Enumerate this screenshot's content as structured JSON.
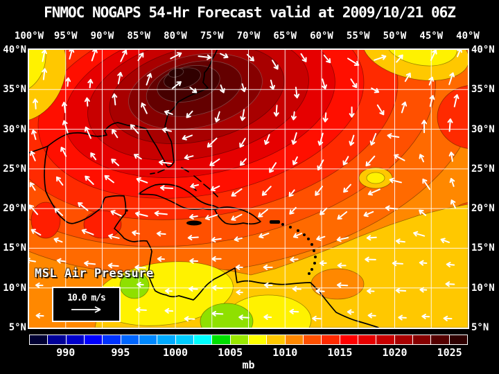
{
  "title": "FNMOC NOGAPS 54-Hr Forecast valid at 2009/10/21 06Z",
  "axes": {
    "lon_labels": [
      "100°W",
      "95°W",
      "90°W",
      "85°W",
      "80°W",
      "75°W",
      "70°W",
      "65°W",
      "60°W",
      "55°W",
      "50°W",
      "45°W",
      "40°W"
    ],
    "lat_labels": [
      "40°N",
      "35°N",
      "30°N",
      "25°N",
      "20°N",
      "15°N",
      "10°N",
      "5°N"
    ]
  },
  "map_overlay": {
    "field_label": "MSL Air Pressure",
    "wind_scale_label": "10.0 m/s"
  },
  "colorbar": {
    "tick_labels": [
      "990",
      "995",
      "1000",
      "1005",
      "1010",
      "1015",
      "1020",
      "1025"
    ],
    "unit_label": "mb",
    "segment_colors": [
      "#000033",
      "#000099",
      "#0000CC",
      "#0000FF",
      "#0033FF",
      "#0066FF",
      "#0088FF",
      "#00AAFF",
      "#00CCFF",
      "#00FFFF",
      "#00E000",
      "#99E800",
      "#FFFF00",
      "#FFC800",
      "#FF8800",
      "#FF5000",
      "#FF2A00",
      "#FF0000",
      "#E60000",
      "#C80000",
      "#A80000",
      "#860000",
      "#550000",
      "#2E0000"
    ]
  },
  "chart_data": {
    "type": "filled_contour_map",
    "title": "FNMOC NOGAPS 54-Hr Forecast valid at 2009/10/21 06Z",
    "source": "FNMOC",
    "model": "NOGAPS",
    "forecast_hour": 54,
    "valid_time": "2009/10/21 06Z",
    "variable": "MSL Air Pressure",
    "unit": "mb",
    "lon_range": [
      "100°W",
      "40°W"
    ],
    "lat_range": [
      "5°N",
      "40°N"
    ],
    "grid_interval_deg": 5,
    "colorbar_ticks_mb": [
      990,
      995,
      1000,
      1005,
      1010,
      1015,
      1020,
      1025
    ],
    "wind_vector_reference": "10.0 m/s",
    "legend_position": "bottom-left inside map",
    "features": [
      {
        "feature": "strong surface high (dark maroon, >1025 mb)",
        "location": "southeastern US / western Atlantic, ~30-37N 90-70W"
      },
      {
        "feature": "red ring 1015-1020 mb around the high",
        "location": "Gulf of Mexico through mid-Atlantic"
      },
      {
        "feature": "orange 1010-1012 mb field",
        "location": "Caribbean and tropical Atlantic"
      },
      {
        "feature": "gold/yellow ~1008-1010 mb band",
        "location": "southern map, 5-15N"
      },
      {
        "feature": "yellow-green ~1005 mb pockets",
        "location": "Costa Rica/Panama area and northern Colombia"
      },
      {
        "feature": "small weak low (gold/yellow spot)",
        "location": "~26N 57W"
      },
      {
        "feature": "yellow patches ~1010 mb",
        "location": "NW corner ~40N 100W and top edge ~39N 52W"
      },
      {
        "feature": "easterly trade-wind vectors",
        "location": "south of 20N, pointing west"
      },
      {
        "feature": "clockwise (anticyclonic) wind vectors",
        "location": "around the high pressure center"
      }
    ],
    "style_colors": {
      "background": "#000000",
      "text": "#FFFFFF",
      "grid_lines": "#FFFFFF",
      "coastlines": "#000000",
      "wind_vectors": "#FFFFFF"
    }
  }
}
